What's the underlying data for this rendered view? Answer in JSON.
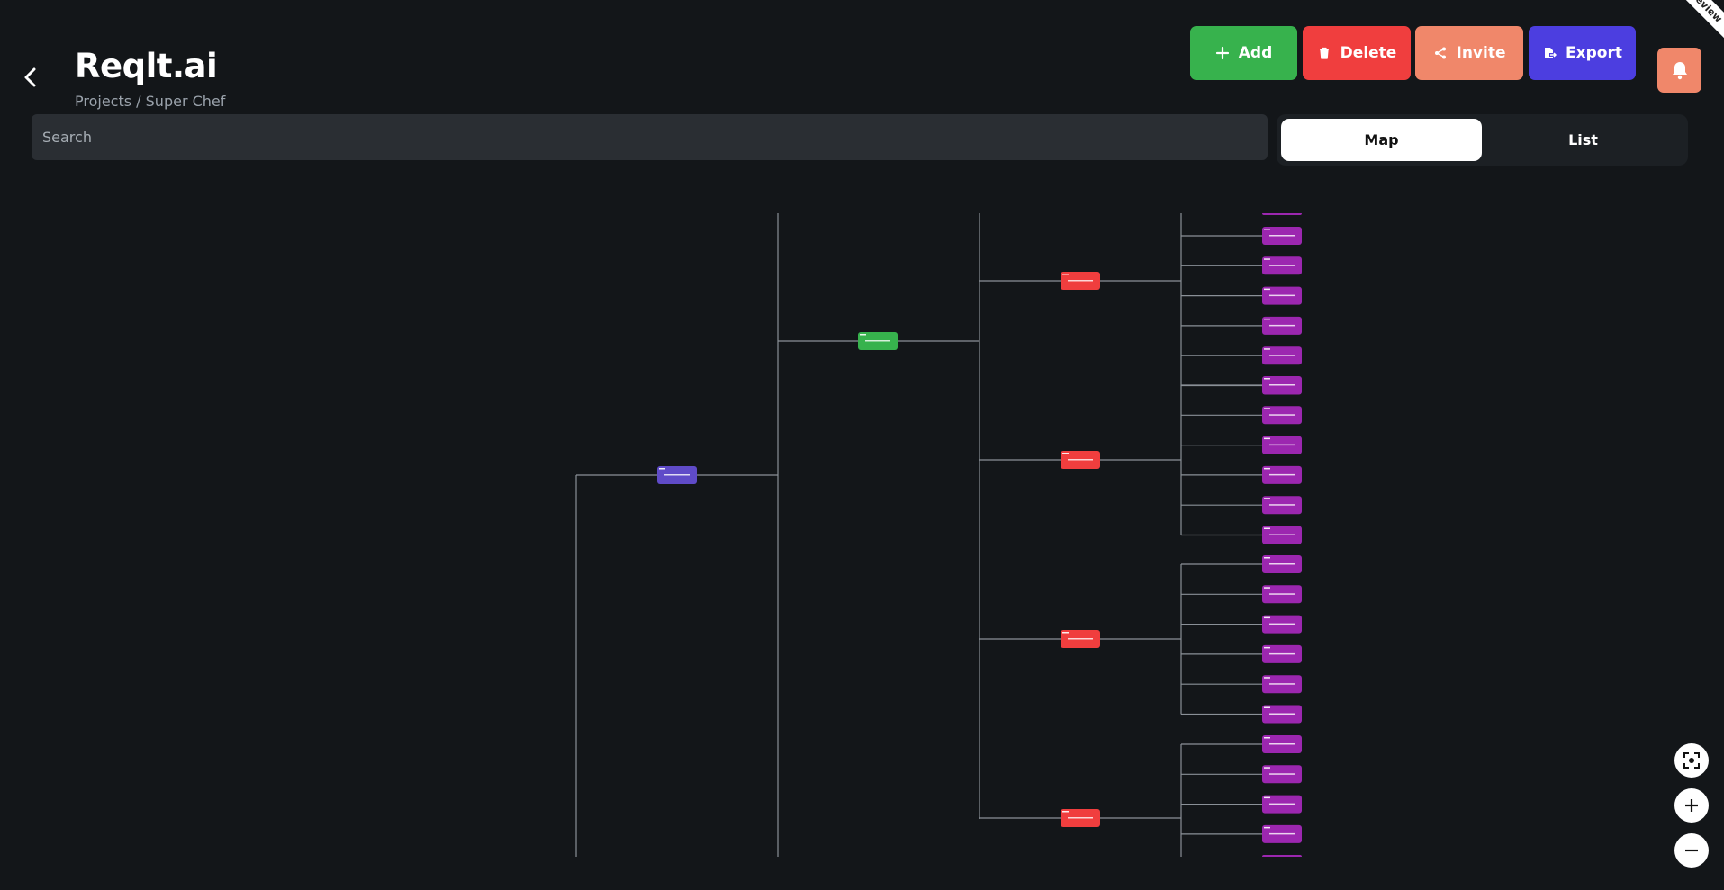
{
  "app": {
    "title": "Reqlt.ai",
    "breadcrumb": "Projects / Super Chef",
    "preview_ribbon": "Preview"
  },
  "toolbar": {
    "add": {
      "label": "Add",
      "color": "#37b24d",
      "icon": "plus-icon"
    },
    "delete": {
      "label": "Delete",
      "color": "#f03e3e",
      "icon": "trash-icon"
    },
    "invite": {
      "label": "Invite",
      "color": "#f0876a",
      "icon": "share-icon"
    },
    "export": {
      "label": "Export",
      "color": "#4c3ee0",
      "icon": "export-icon"
    },
    "notifications": {
      "icon": "bell-icon",
      "color": "#f0876a"
    }
  },
  "search": {
    "placeholder": "Search",
    "value": ""
  },
  "view_toggle": {
    "map": "Map",
    "list": "List",
    "selected": "Map"
  },
  "map": {
    "colors": {
      "root": "#5f4bc8",
      "feature": "#37b24d",
      "epic": "#f03e3e",
      "story": "#9c27b0",
      "connector": "#8a9097"
    },
    "nodes": {
      "root_count": 1,
      "feature_count": 1,
      "epics": [
        {
          "stories": 6
        },
        {
          "stories": 6
        },
        {
          "stories": 6
        },
        {
          "stories": 5
        }
      ]
    }
  },
  "zoom_controls": [
    "fit-view-icon",
    "zoom-in-icon",
    "zoom-out-icon"
  ]
}
